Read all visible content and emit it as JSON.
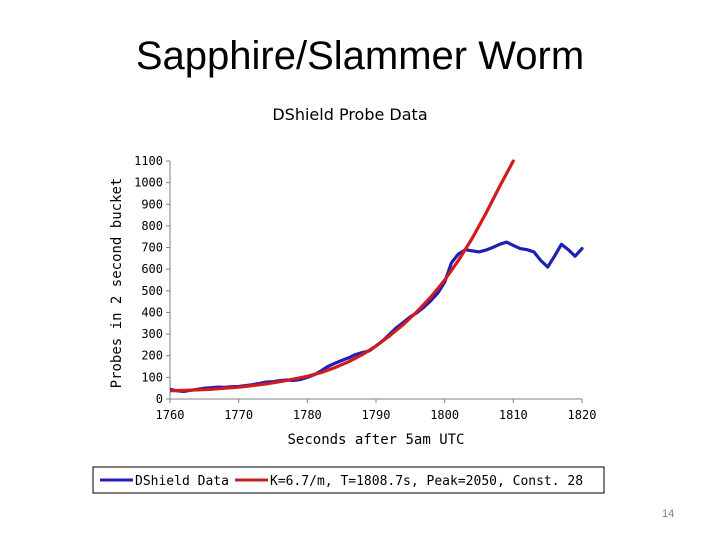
{
  "slide": {
    "title": "Sapphire/Slammer Worm",
    "page_number": "14"
  },
  "chart_data": {
    "type": "line",
    "title": "DShield Probe Data",
    "xlabel": "Seconds after 5am UTC",
    "ylabel": "Probes in 2 second bucket",
    "xlim": [
      1760,
      1820
    ],
    "ylim": [
      0,
      1100
    ],
    "xticks": [
      1760,
      1770,
      1780,
      1790,
      1800,
      1810,
      1820
    ],
    "yticks": [
      0,
      100,
      200,
      300,
      400,
      500,
      600,
      700,
      800,
      900,
      1000,
      1100
    ],
    "grid": false,
    "legend_position": "bottom",
    "series": [
      {
        "name": "DShield Data",
        "color": "#1f1fb4",
        "x": [
          1760,
          1761,
          1762,
          1763,
          1764,
          1765,
          1766,
          1767,
          1768,
          1769,
          1770,
          1771,
          1772,
          1773,
          1774,
          1775,
          1776,
          1777,
          1778,
          1779,
          1780,
          1781,
          1782,
          1783,
          1784,
          1785,
          1786,
          1787,
          1788,
          1789,
          1790,
          1791,
          1792,
          1793,
          1794,
          1795,
          1796,
          1797,
          1798,
          1799,
          1800,
          1801,
          1802,
          1803,
          1804,
          1805,
          1806,
          1807,
          1808,
          1809,
          1810,
          1811,
          1812,
          1813,
          1814,
          1815,
          1816,
          1817,
          1818,
          1819,
          1820
        ],
        "y": [
          45,
          38,
          35,
          40,
          45,
          50,
          52,
          55,
          54,
          57,
          58,
          62,
          66,
          72,
          78,
          80,
          85,
          88,
          86,
          90,
          100,
          112,
          130,
          150,
          165,
          178,
          190,
          205,
          215,
          222,
          245,
          270,
          300,
          330,
          355,
          380,
          400,
          425,
          455,
          490,
          540,
          630,
          670,
          690,
          685,
          680,
          688,
          700,
          715,
          725,
          710,
          695,
          690,
          680,
          640,
          610,
          660,
          715,
          690,
          660,
          695
        ]
      },
      {
        "name": "K=6.7/m, T=1808.7s, Peak=2050, Const. 28",
        "color": "#d01c1c",
        "x": [
          1760,
          1762,
          1764,
          1766,
          1768,
          1770,
          1772,
          1774,
          1776,
          1778,
          1780,
          1782,
          1784,
          1786,
          1788,
          1790,
          1792,
          1794,
          1796,
          1798,
          1800,
          1802,
          1804,
          1806,
          1808,
          1810
        ],
        "y": [
          38,
          40,
          42,
          45,
          50,
          55,
          62,
          70,
          80,
          92,
          105,
          122,
          145,
          172,
          205,
          245,
          292,
          345,
          405,
          472,
          550,
          640,
          742,
          858,
          982,
          1100
        ]
      }
    ]
  }
}
